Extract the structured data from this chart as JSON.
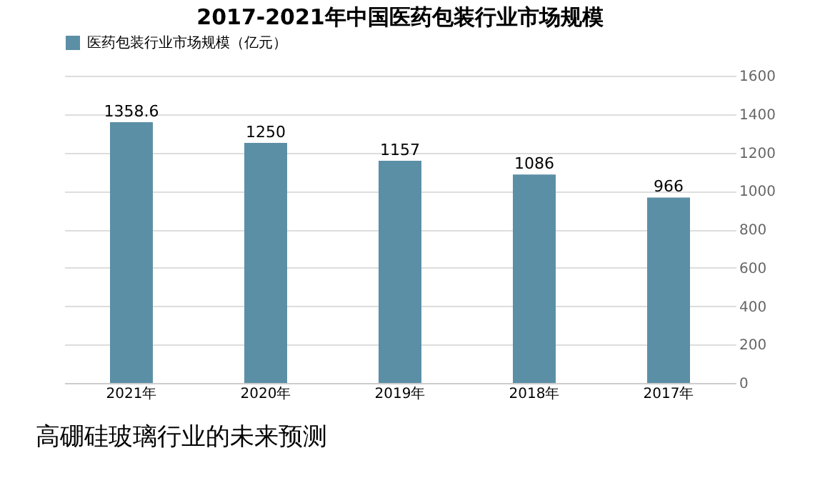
{
  "chart_data": {
    "type": "bar",
    "title": "2017-2021年中国医药包装行业市场规模",
    "categories": [
      "2021年",
      "2020年",
      "2019年",
      "2018年",
      "2017年"
    ],
    "series": [
      {
        "name": "医药包装行业市场规模（亿元）",
        "color": "#5b8fa6",
        "values": [
          1358.6,
          1250,
          1157,
          1086,
          966
        ]
      }
    ],
    "data_labels": true,
    "ylim": [
      0,
      1600
    ],
    "yticks": [
      0,
      200,
      400,
      600,
      800,
      1000,
      1200,
      1400,
      1600
    ],
    "grid": "y",
    "legend": "top",
    "annotations": [
      "高硼硅玻璃行业的未来预测"
    ]
  }
}
